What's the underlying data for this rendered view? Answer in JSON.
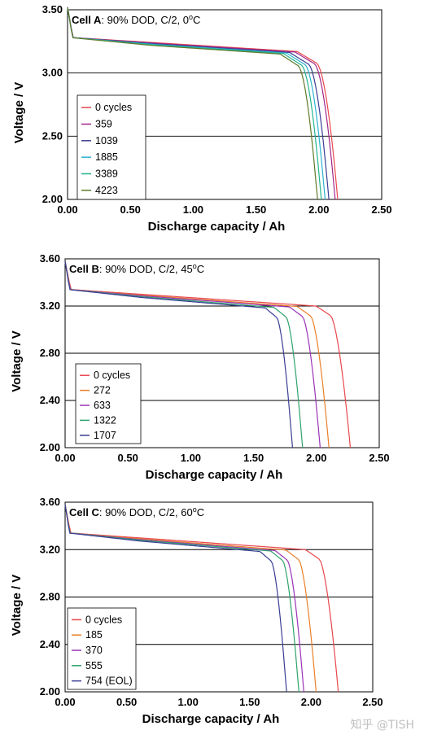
{
  "chart_data": [
    {
      "type": "line",
      "title_bold": "Cell A",
      "title_rest": ": 90% DOD, C/2, 0",
      "title_sup": "o",
      "title_end": "C",
      "xlabel": "Discharge capacity / Ah",
      "ylabel": "Voltage / V",
      "xlim": [
        0,
        2.5
      ],
      "ylim": [
        2.0,
        3.5
      ],
      "xticks": [
        0,
        0.5,
        1.0,
        1.5,
        2.0,
        2.5
      ],
      "xtick_labels": [
        "0.00",
        "0.50",
        "1.00",
        "1.50",
        "2.00",
        "2.50"
      ],
      "yticks": [
        2.0,
        2.5,
        3.0,
        3.5
      ],
      "ytick_labels": [
        "2.00",
        "2.50",
        "3.00",
        "3.50"
      ],
      "grid": "horizontal",
      "legend_position": "bottom-left",
      "series": [
        {
          "name": "0 cycles",
          "color": "#e8474d",
          "capacity": 2.15
        },
        {
          "name": "359",
          "color": "#a0268a",
          "capacity": 2.13
        },
        {
          "name": "1039",
          "color": "#3a3d94",
          "capacity": 2.08
        },
        {
          "name": "1885",
          "color": "#2bb3cf",
          "capacity": 2.05
        },
        {
          "name": "3389",
          "color": "#23b38f",
          "capacity": 2.02
        },
        {
          "name": "4223",
          "color": "#5e7a2a",
          "capacity": 1.99
        }
      ]
    },
    {
      "type": "line",
      "title_bold": "Cell B",
      "title_rest": ": 90% DOD, C/2, 45",
      "title_sup": "o",
      "title_end": "C",
      "xlabel": "Discharge capacity / Ah",
      "ylabel": "Voltage / V",
      "xlim": [
        0,
        2.5
      ],
      "ylim": [
        2.0,
        3.6
      ],
      "xticks": [
        0,
        0.5,
        1.0,
        1.5,
        2.0,
        2.5
      ],
      "xtick_labels": [
        "0.00",
        "0.50",
        "1.00",
        "1.50",
        "2.00",
        "2.50"
      ],
      "yticks": [
        2.0,
        2.4,
        2.8,
        3.2,
        3.6
      ],
      "ytick_labels": [
        "2.00",
        "2.40",
        "2.80",
        "3.20",
        "3.60"
      ],
      "grid": "horizontal",
      "legend_position": "bottom-left",
      "series": [
        {
          "name": "0 cycles",
          "color": "#e8474d",
          "capacity": 2.27
        },
        {
          "name": "272",
          "color": "#e8802a",
          "capacity": 2.1
        },
        {
          "name": "633",
          "color": "#9b33b8",
          "capacity": 2.03
        },
        {
          "name": "1322",
          "color": "#2fa36b",
          "capacity": 1.89
        },
        {
          "name": "1707",
          "color": "#3a3d94",
          "capacity": 1.81
        }
      ]
    },
    {
      "type": "line",
      "title_bold": "Cell C",
      "title_rest": ": 90% DOD, C/2, 60",
      "title_sup": "o",
      "title_end": "C",
      "xlabel": "Discharge capacity / Ah",
      "ylabel": "Voltage / V",
      "xlim": [
        0,
        2.5
      ],
      "ylim": [
        2.0,
        3.6
      ],
      "xticks": [
        0,
        0.5,
        1.0,
        1.5,
        2.0,
        2.5
      ],
      "xtick_labels": [
        "0.00",
        "0.50",
        "1.00",
        "1.50",
        "2.00",
        "2.50"
      ],
      "yticks": [
        2.0,
        2.4,
        2.8,
        3.2,
        3.6
      ],
      "ytick_labels": [
        "2.00",
        "2.40",
        "2.80",
        "3.20",
        "3.60"
      ],
      "grid": "horizontal",
      "legend_position": "bottom-left",
      "series": [
        {
          "name": "0 cycles",
          "color": "#e8474d",
          "capacity": 2.22
        },
        {
          "name": "185",
          "color": "#e8802a",
          "capacity": 2.04
        },
        {
          "name": "370",
          "color": "#9b33b8",
          "capacity": 1.94
        },
        {
          "name": "555",
          "color": "#2fa36b",
          "capacity": 1.9
        },
        {
          "name": "754 (EOL)",
          "color": "#3a3d94",
          "capacity": 1.8
        }
      ]
    }
  ],
  "watermark": "知乎 @TISH"
}
